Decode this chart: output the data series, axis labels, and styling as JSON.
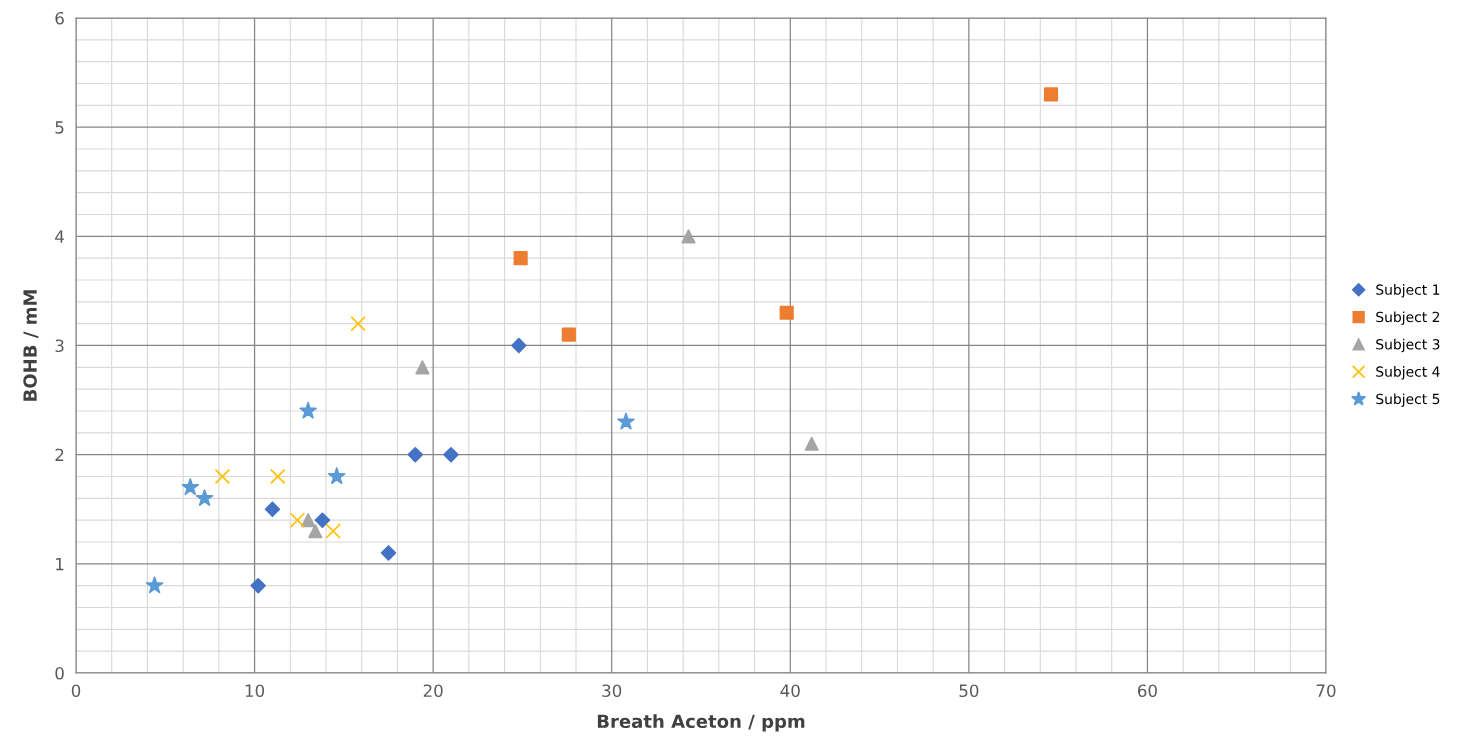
{
  "chart_data": {
    "type": "scatter",
    "xlabel": "Breath Aceton / ppm",
    "ylabel": "BOHB / mM",
    "xlim": [
      0,
      70
    ],
    "xticks": [
      0,
      10,
      20,
      30,
      40,
      50,
      60,
      70
    ],
    "ylim": [
      0,
      6
    ],
    "yticks": [
      0,
      1,
      2,
      3,
      4,
      5,
      6
    ],
    "grid": true,
    "legend": "right",
    "series": [
      {
        "name": "Subject 1",
        "color": "#4472c4",
        "marker": "diamond",
        "x": [
          10.2,
          11.0,
          13.8,
          17.5,
          19.0,
          21.0,
          24.8
        ],
        "values": [
          0.8,
          1.5,
          1.4,
          1.1,
          2.0,
          2.0,
          3.0
        ]
      },
      {
        "name": "Subject 2",
        "color": "#ed7d31",
        "marker": "square",
        "x": [
          24.9,
          27.6,
          39.8,
          54.6
        ],
        "values": [
          3.8,
          3.1,
          3.3,
          5.3
        ]
      },
      {
        "name": "Subject 3",
        "color": "#a5a5a5",
        "marker": "triangle",
        "x": [
          13.0,
          13.4,
          19.4,
          34.3,
          41.2
        ],
        "values": [
          1.4,
          1.3,
          2.8,
          4.0,
          2.1
        ]
      },
      {
        "name": "Subject 4",
        "color": "#ffc000",
        "marker": "cross",
        "x": [
          8.2,
          11.3,
          12.4,
          14.4,
          15.8
        ],
        "values": [
          1.8,
          1.8,
          1.4,
          1.3,
          3.2
        ]
      },
      {
        "name": "Subject 5",
        "color": "#5b9bd5",
        "marker": "star",
        "x": [
          4.4,
          6.4,
          7.2,
          13.0,
          14.6,
          30.8
        ],
        "values": [
          0.8,
          1.7,
          1.6,
          2.4,
          1.8,
          2.3
        ]
      }
    ]
  }
}
